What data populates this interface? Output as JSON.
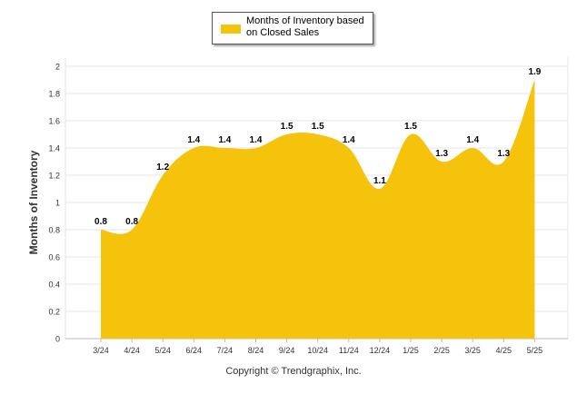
{
  "chart_data": {
    "type": "area",
    "categories": [
      "3/24",
      "4/24",
      "5/24",
      "6/24",
      "7/24",
      "8/24",
      "9/24",
      "10/24",
      "11/24",
      "12/24",
      "1/25",
      "2/25",
      "3/25",
      "4/25",
      "5/25"
    ],
    "series": [
      {
        "name": "Months of Inventory based on Closed Sales",
        "values": [
          0.8,
          0.8,
          1.2,
          1.4,
          1.4,
          1.4,
          1.5,
          1.5,
          1.4,
          1.1,
          1.5,
          1.3,
          1.4,
          1.3,
          1.9
        ]
      }
    ],
    "ylabel": "Months of Inventory",
    "xlabel": "",
    "ylim": [
      0,
      2
    ],
    "yticks": [
      "0",
      "0.2",
      "0.4",
      "0.6",
      "0.8",
      "1",
      "1.2",
      "1.4",
      "1.6",
      "1.8",
      "2"
    ],
    "grid": true,
    "legend_position": "top-center",
    "fill_color": "#f5c20c"
  },
  "legend": {
    "label": "Months of Inventory based on Closed Sales"
  },
  "footer": {
    "copyright": "Copyright © Trendgraphix, Inc."
  }
}
